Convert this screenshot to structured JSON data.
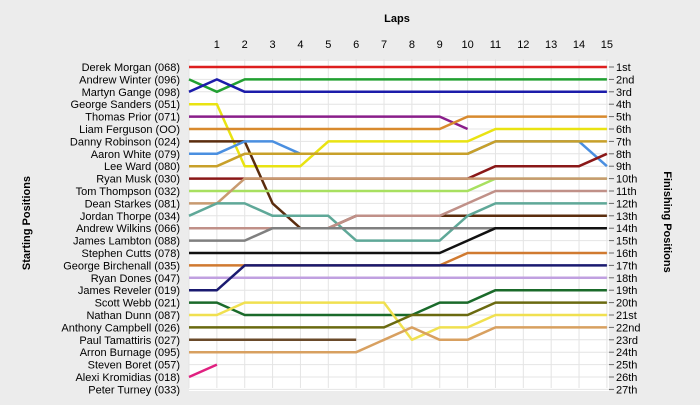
{
  "chart_data": {
    "type": "line",
    "title": "Laps",
    "ylabel_left": "Starting Positions",
    "ylabel_right": "Finishing Positions",
    "laps": [
      "1",
      "2",
      "3",
      "4",
      "5",
      "6",
      "7",
      "8",
      "9",
      "10",
      "11",
      "12",
      "13",
      "14",
      "15"
    ],
    "grid": true,
    "finish_labels": [
      "1st",
      "2nd",
      "3rd",
      "4th",
      "5th",
      "6th",
      "7th",
      "8th",
      "9th",
      "10th",
      "11th",
      "12th",
      "13th",
      "14th",
      "15th",
      "16th",
      "17th",
      "18th",
      "19th",
      "20th",
      "21st",
      "22nd",
      "23rd",
      "24th",
      "25th",
      "26th",
      "27th"
    ],
    "series": [
      {
        "name": "Derek Morgan (068)",
        "color": "#dd1e1e",
        "positions": [
          1,
          1,
          1,
          1,
          1,
          1,
          1,
          1,
          1,
          1,
          1,
          1,
          1,
          1,
          1,
          1
        ]
      },
      {
        "name": "Andrew Winter (096)",
        "color": "#22a032",
        "positions": [
          2,
          3,
          2,
          2,
          2,
          2,
          2,
          2,
          2,
          2,
          2,
          2,
          2,
          2,
          2,
          2
        ]
      },
      {
        "name": "Martyn Gange (098)",
        "color": "#1c1caa",
        "positions": [
          3,
          2,
          3,
          3,
          3,
          3,
          3,
          3,
          3,
          3,
          3,
          3,
          3,
          3,
          3,
          3
        ]
      },
      {
        "name": "George Sanders (051)",
        "color": "#e9e312",
        "positions": [
          4,
          4,
          9,
          9,
          9,
          7,
          7,
          7,
          7,
          7,
          7,
          6,
          6,
          6,
          6,
          6
        ]
      },
      {
        "name": "Thomas Prior (071)",
        "color": "#8a1e8a",
        "positions": [
          5,
          5,
          5,
          5,
          5,
          5,
          5,
          5,
          5,
          5,
          6
        ]
      },
      {
        "name": "Liam Ferguson (OO)",
        "color": "#d88a2e",
        "positions": [
          6,
          6,
          6,
          6,
          6,
          6,
          6,
          6,
          6,
          6,
          5,
          5,
          5,
          5,
          5,
          5
        ]
      },
      {
        "name": "Danny Robinson (024)",
        "color": "#5b2d0e",
        "positions": [
          7,
          7,
          7,
          12,
          14,
          14,
          13,
          13,
          13,
          13,
          13,
          13,
          13,
          13,
          13,
          13
        ]
      },
      {
        "name": "Aaron White (079)",
        "color": "#4a8fe0",
        "positions": [
          8,
          8,
          7,
          7,
          8,
          8,
          8,
          8,
          8,
          8,
          8,
          7,
          7,
          7,
          7,
          9
        ]
      },
      {
        "name": "Lee Ward (080)",
        "color": "#c8a02a",
        "positions": [
          9,
          9,
          8,
          8,
          8,
          8,
          8,
          8,
          8,
          8,
          8,
          7,
          7,
          7,
          7,
          7
        ]
      },
      {
        "name": "Ryan Musk (030)",
        "color": "#8a1818",
        "positions": [
          10,
          10,
          10,
          10,
          10,
          10,
          10,
          10,
          10,
          10,
          10,
          9,
          9,
          9,
          9,
          8
        ]
      },
      {
        "name": "Tom Thompson (032)",
        "color": "#a8e060",
        "positions": [
          11,
          11,
          11,
          11,
          11,
          11,
          11,
          11,
          11,
          11,
          11,
          10,
          10,
          10,
          10,
          10
        ]
      },
      {
        "name": "Dean Starkes (081)",
        "color": "#c89a70",
        "positions": [
          12,
          12,
          10,
          10,
          10,
          10,
          10,
          10,
          10,
          10,
          10,
          10,
          10,
          10,
          10,
          10
        ]
      },
      {
        "name": "Jordan Thorpe (034)",
        "color": "#5fa898",
        "positions": [
          13,
          12,
          12,
          13,
          13,
          13,
          15,
          15,
          15,
          15,
          13,
          12,
          12,
          12,
          12,
          12
        ]
      },
      {
        "name": "Andrew Wilkins (066)",
        "color": "#c09088",
        "positions": [
          14,
          14,
          14,
          14,
          14,
          14,
          13,
          13,
          13,
          13,
          12,
          11,
          11,
          11,
          11,
          11
        ]
      },
      {
        "name": "James Lambton (088)",
        "color": "#808080",
        "positions": [
          15,
          15,
          15,
          14,
          14,
          14,
          14,
          14,
          14,
          14,
          14,
          14,
          14,
          14,
          14,
          14
        ]
      },
      {
        "name": "Stephen Cutts (078)",
        "color": "#111111",
        "positions": [
          16,
          16,
          16,
          16,
          16,
          16,
          16,
          16,
          16,
          16,
          15,
          14,
          14,
          14,
          14,
          14
        ]
      },
      {
        "name": "George Birchenall (035)",
        "color": "#d07a30",
        "positions": [
          17,
          17,
          17,
          17,
          17,
          17,
          17,
          17,
          17,
          17,
          16,
          16,
          16,
          16,
          16,
          16
        ]
      },
      {
        "name": "Ryan Dones (047)",
        "color": "#c0a0e0",
        "positions": [
          18,
          18,
          18,
          18,
          18,
          18,
          18,
          18,
          18,
          18,
          18,
          18,
          18,
          18,
          18,
          18
        ]
      },
      {
        "name": "James Reveler (019)",
        "color": "#1a1a70",
        "positions": [
          19,
          19,
          17,
          17,
          17,
          17,
          17,
          17,
          17,
          17,
          17,
          17,
          17,
          17,
          17,
          17
        ]
      },
      {
        "name": "Scott Webb (021)",
        "color": "#1a6a2a",
        "positions": [
          20,
          20,
          21,
          21,
          21,
          21,
          21,
          21,
          21,
          20,
          20,
          19,
          19,
          19,
          19,
          19
        ]
      },
      {
        "name": "Nathan Dunn (087)",
        "color": "#f0e050",
        "positions": [
          21,
          21,
          20,
          20,
          20,
          20,
          20,
          20,
          23,
          22,
          22,
          21,
          21,
          21,
          21,
          21
        ]
      },
      {
        "name": "Anthony Campbell (026)",
        "color": "#6a6a10",
        "positions": [
          22,
          22,
          22,
          22,
          22,
          22,
          22,
          22,
          21,
          21,
          21,
          20,
          20,
          20,
          20,
          20
        ]
      },
      {
        "name": "Paul Tamattiris (027)",
        "color": "#6a4a2a",
        "positions": [
          23,
          23,
          23,
          23,
          23,
          23,
          23
        ]
      },
      {
        "name": "Arron Burnage (095)",
        "color": "#d8a060",
        "positions": [
          24,
          24,
          24,
          24,
          24,
          24,
          24,
          23,
          22,
          23,
          23,
          22,
          22,
          22,
          22,
          22
        ]
      },
      {
        "name": "Steven Boret (057)",
        "color": "#e02080",
        "positions": [
          26,
          25
        ]
      },
      {
        "name": "Alexi Kromidias (018)",
        "color": "#888888",
        "positions": []
      },
      {
        "name": "Peter Turney (033)",
        "color": "#888888",
        "positions": []
      }
    ]
  }
}
